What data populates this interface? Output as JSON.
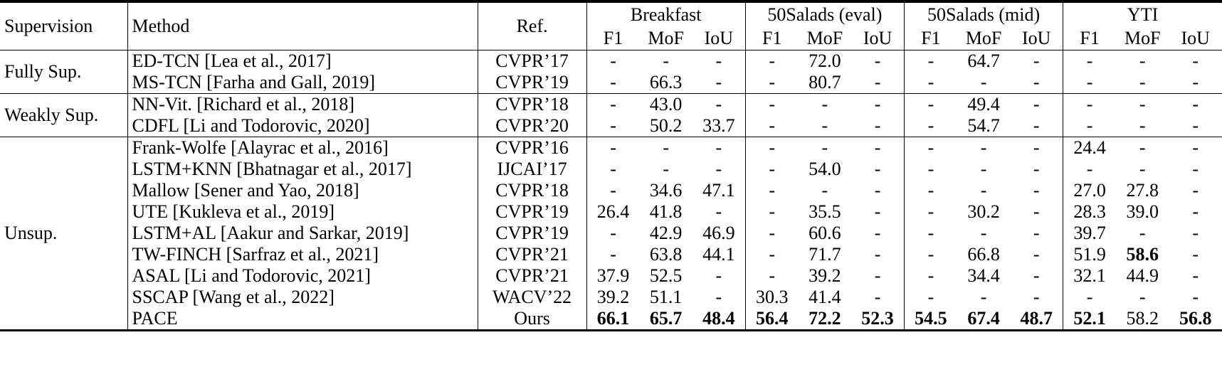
{
  "header": {
    "supervision": "Supervision",
    "method": "Method",
    "ref": "Ref.",
    "datasets": [
      "Breakfast",
      "50Salads (eval)",
      "50Salads (mid)",
      "YTI"
    ],
    "metrics": [
      "F1",
      "MoF",
      "IoU"
    ]
  },
  "groups": [
    {
      "supervision": "Fully Sup.",
      "rows": [
        {
          "method": "ED-TCN [Lea et al., 2017]",
          "ref": "CVPR’17",
          "cells": [
            "-",
            "-",
            "-",
            "-",
            "72.0",
            "-",
            "-",
            "64.7",
            "-",
            "-",
            "-",
            "-"
          ]
        },
        {
          "method": "MS-TCN [Farha and Gall, 2019]",
          "ref": "CVPR’19",
          "cells": [
            "-",
            "66.3",
            "-",
            "-",
            "80.7",
            "-",
            "-",
            "-",
            "-",
            "-",
            "-",
            "-"
          ]
        }
      ]
    },
    {
      "supervision": "Weakly Sup.",
      "rows": [
        {
          "method": "NN-Vit. [Richard et al., 2018]",
          "ref": "CVPR’18",
          "cells": [
            "-",
            "43.0",
            "-",
            "-",
            "-",
            "-",
            "-",
            "49.4",
            "-",
            "-",
            "-",
            "-"
          ]
        },
        {
          "method": "CDFL [Li and Todorovic, 2020]",
          "ref": "CVPR’20",
          "cells": [
            "-",
            "50.2",
            "33.7",
            "-",
            "-",
            "-",
            "-",
            "54.7",
            "-",
            "-",
            "-",
            "-"
          ]
        }
      ]
    },
    {
      "supervision": "Unsup.",
      "rows": [
        {
          "method": "Frank-Wolfe [Alayrac et al., 2016]",
          "ref": "CVPR’16",
          "cells": [
            "-",
            "-",
            "-",
            "-",
            "-",
            "-",
            "-",
            "-",
            "-",
            "24.4",
            "-",
            "-"
          ]
        },
        {
          "method": "LSTM+KNN [Bhatnagar et al., 2017]",
          "ref": "IJCAI’17",
          "cells": [
            "-",
            "-",
            "-",
            "-",
            "54.0",
            "-",
            "-",
            "-",
            "-",
            "-",
            "-",
            "-"
          ]
        },
        {
          "method": "Mallow [Sener and Yao, 2018]",
          "ref": "CVPR’18",
          "cells": [
            "-",
            "34.6",
            "47.1",
            "-",
            "-",
            "-",
            "-",
            "-",
            "-",
            "27.0",
            "27.8",
            "-"
          ]
        },
        {
          "method": "UTE [Kukleva et al., 2019]",
          "ref": "CVPR’19",
          "cells": [
            "26.4",
            "41.8",
            "-",
            "-",
            "35.5",
            "-",
            "-",
            "30.2",
            "-",
            "28.3",
            "39.0",
            "-"
          ]
        },
        {
          "method": "LSTM+AL [Aakur and Sarkar, 2019]",
          "ref": "CVPR’19",
          "cells": [
            "-",
            "42.9",
            "46.9",
            "-",
            "60.6",
            "-",
            "-",
            "-",
            "-",
            "39.7",
            "-",
            "-"
          ]
        },
        {
          "method": "TW-FINCH [Sarfraz et al., 2021]",
          "ref": "CVPR’21",
          "cells": [
            "-",
            "63.8",
            "44.1",
            "-",
            "71.7",
            "-",
            "-",
            "66.8",
            "-",
            "51.9",
            {
              "text": "58.6",
              "bold": true
            },
            "-"
          ]
        },
        {
          "method": "ASAL [Li and Todorovic, 2021]",
          "ref": "CVPR’21",
          "cells": [
            "37.9",
            "52.5",
            "-",
            "-",
            "39.2",
            "-",
            "-",
            "34.4",
            "-",
            "32.1",
            "44.9",
            "-"
          ]
        },
        {
          "method": "SSCAP [Wang et al., 2022]",
          "ref": "WACV’22",
          "cells": [
            "39.2",
            "51.1",
            "-",
            "30.3",
            "41.4",
            "-",
            "-",
            "-",
            "-",
            "-",
            "-",
            "-"
          ]
        },
        {
          "method": "PACE",
          "ref": "Ours",
          "cells": [
            {
              "text": "66.1",
              "bold": true
            },
            {
              "text": "65.7",
              "bold": true
            },
            {
              "text": "48.4",
              "bold": true
            },
            {
              "text": "56.4",
              "bold": true
            },
            {
              "text": "72.2",
              "bold": true
            },
            {
              "text": "52.3",
              "bold": true
            },
            {
              "text": "54.5",
              "bold": true
            },
            {
              "text": "67.4",
              "bold": true
            },
            {
              "text": "48.7",
              "bold": true
            },
            {
              "text": "52.1",
              "bold": true
            },
            "58.2",
            {
              "text": "56.8",
              "bold": true
            }
          ]
        }
      ]
    }
  ]
}
